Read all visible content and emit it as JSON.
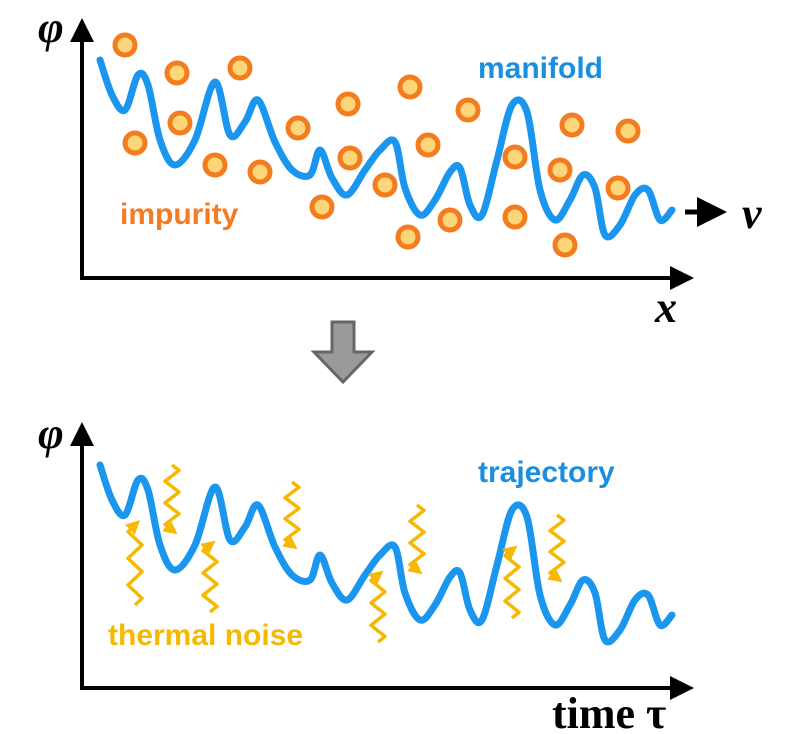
{
  "top": {
    "y_axis": "φ",
    "x_axis": "x",
    "curve_label": "manifold",
    "dots_label": "impurity",
    "velocity": "v"
  },
  "bottom": {
    "y_axis": "φ",
    "x_axis": "time τ",
    "curve_label": "trajectory",
    "noise_label": "thermal noise"
  }
}
